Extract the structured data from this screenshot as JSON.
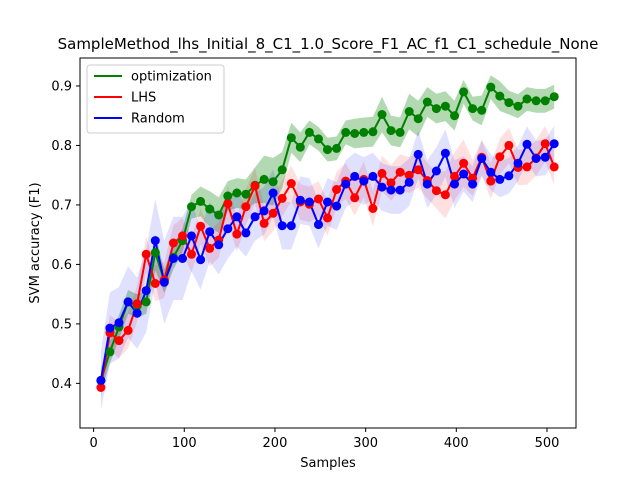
{
  "chart_data": {
    "type": "line",
    "title": "SampleMethod_lhs_Initial_8_C1_1.0_Score_F1_AC_f1_C1_schedule_None",
    "xlabel": "Samples",
    "ylabel": "SVM accuracy (F1)",
    "xlim": [
      -15,
      532
    ],
    "ylim": [
      0.325,
      0.947
    ],
    "xticks": [
      0,
      100,
      200,
      300,
      400,
      500
    ],
    "yticks": [
      0.4,
      0.5,
      0.6,
      0.7,
      0.8,
      0.9
    ],
    "grid": false,
    "legend_position": "top-left",
    "x": [
      8,
      18,
      28,
      38,
      48,
      58,
      68,
      78,
      88,
      98,
      108,
      118,
      128,
      138,
      148,
      158,
      168,
      178,
      188,
      198,
      208,
      218,
      228,
      238,
      248,
      258,
      268,
      278,
      288,
      298,
      308,
      318,
      328,
      338,
      348,
      358,
      368,
      378,
      388,
      398,
      408,
      418,
      428,
      438,
      448,
      458,
      468,
      478,
      488,
      498,
      508
    ],
    "series": [
      {
        "name": "optimization",
        "color": "#008000",
        "values": [
          0.405,
          0.453,
          0.495,
          0.537,
          0.53,
          0.537,
          0.62,
          0.572,
          0.612,
          0.64,
          0.697,
          0.706,
          0.693,
          0.683,
          0.715,
          0.72,
          0.718,
          0.733,
          0.743,
          0.739,
          0.759,
          0.813,
          0.797,
          0.822,
          0.811,
          0.793,
          0.795,
          0.822,
          0.82,
          0.822,
          0.823,
          0.852,
          0.825,
          0.822,
          0.857,
          0.845,
          0.873,
          0.862,
          0.866,
          0.85,
          0.89,
          0.862,
          0.859,
          0.898,
          0.883,
          0.872,
          0.866,
          0.878,
          0.875,
          0.875,
          0.882
        ],
        "band_halfwidth": [
          0.02,
          0.02,
          0.02,
          0.02,
          0.02,
          0.02,
          0.03,
          0.02,
          0.02,
          0.02,
          0.02,
          0.025,
          0.03,
          0.03,
          0.025,
          0.025,
          0.025,
          0.03,
          0.04,
          0.04,
          0.03,
          0.025,
          0.025,
          0.02,
          0.02,
          0.02,
          0.02,
          0.02,
          0.025,
          0.025,
          0.025,
          0.03,
          0.025,
          0.025,
          0.03,
          0.03,
          0.025,
          0.025,
          0.025,
          0.025,
          0.02,
          0.02,
          0.025,
          0.02,
          0.025,
          0.02,
          0.02,
          0.02,
          0.02,
          0.02,
          0.02
        ]
      },
      {
        "name": "LHS",
        "color": "#ff0000",
        "values": [
          0.393,
          0.485,
          0.472,
          0.489,
          0.534,
          0.617,
          0.568,
          0.574,
          0.636,
          0.648,
          0.617,
          0.664,
          0.627,
          0.641,
          0.702,
          0.651,
          0.697,
          0.732,
          0.669,
          0.686,
          0.711,
          0.736,
          0.705,
          0.701,
          0.71,
          0.678,
          0.726,
          0.74,
          0.712,
          0.743,
          0.694,
          0.753,
          0.737,
          0.755,
          0.75,
          0.759,
          0.741,
          0.724,
          0.717,
          0.748,
          0.77,
          0.745,
          0.78,
          0.74,
          0.781,
          0.8,
          0.763,
          0.764,
          0.779,
          0.803,
          0.764
        ],
        "band_halfwidth": [
          0.02,
          0.03,
          0.03,
          0.03,
          0.03,
          0.03,
          0.03,
          0.03,
          0.03,
          0.03,
          0.03,
          0.03,
          0.03,
          0.03,
          0.03,
          0.03,
          0.03,
          0.03,
          0.03,
          0.03,
          0.03,
          0.03,
          0.03,
          0.03,
          0.03,
          0.03,
          0.03,
          0.03,
          0.03,
          0.03,
          0.03,
          0.03,
          0.03,
          0.03,
          0.03,
          0.03,
          0.03,
          0.03,
          0.04,
          0.04,
          0.04,
          0.03,
          0.03,
          0.03,
          0.03,
          0.03,
          0.03,
          0.03,
          0.03,
          0.03,
          0.03
        ]
      },
      {
        "name": "Random",
        "color": "#0000ff",
        "values": [
          0.405,
          0.493,
          0.502,
          0.537,
          0.518,
          0.556,
          0.64,
          0.57,
          0.61,
          0.61,
          0.648,
          0.608,
          0.655,
          0.633,
          0.66,
          0.68,
          0.653,
          0.68,
          0.69,
          0.72,
          0.665,
          0.665,
          0.708,
          0.705,
          0.667,
          0.705,
          0.698,
          0.735,
          0.748,
          0.74,
          0.748,
          0.73,
          0.725,
          0.725,
          0.738,
          0.785,
          0.735,
          0.757,
          0.787,
          0.735,
          0.752,
          0.735,
          0.778,
          0.755,
          0.743,
          0.749,
          0.77,
          0.802,
          0.778,
          0.78,
          0.803
        ],
        "band_halfwidth": [
          0.05,
          0.06,
          0.06,
          0.06,
          0.06,
          0.07,
          0.07,
          0.07,
          0.07,
          0.07,
          0.06,
          0.05,
          0.05,
          0.05,
          0.05,
          0.05,
          0.04,
          0.04,
          0.04,
          0.04,
          0.04,
          0.04,
          0.04,
          0.04,
          0.04,
          0.04,
          0.04,
          0.04,
          0.04,
          0.04,
          0.04,
          0.04,
          0.04,
          0.04,
          0.04,
          0.04,
          0.04,
          0.04,
          0.04,
          0.04,
          0.03,
          0.03,
          0.03,
          0.03,
          0.03,
          0.03,
          0.03,
          0.03,
          0.03,
          0.03,
          0.03
        ]
      }
    ]
  }
}
